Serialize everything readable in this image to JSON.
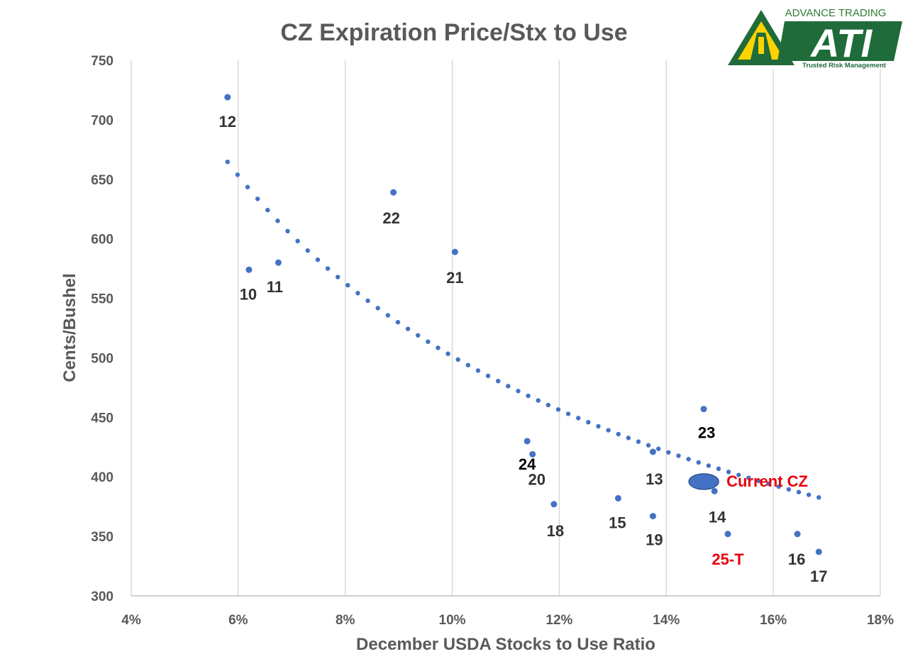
{
  "colors": {
    "marker": "#4472c4",
    "trend": "#4472c4",
    "grid": "#d9d9d9",
    "label": "#333333",
    "label_black": "#000000",
    "highlight": "#e8000b",
    "logo_green": "#1f6b3a",
    "logo_yellow": "#ffd200"
  },
  "logo": {
    "line1": "ADVANCE TRADING",
    "mark": "ATI",
    "tagline": "Trusted Risk Management"
  },
  "chart_data": {
    "type": "scatter",
    "title": "CZ Expiration Price/Stx to Use",
    "xlabel": "December USDA Stocks to Use Ratio",
    "ylabel": "Cents/Bushel",
    "xlim": [
      4,
      18
    ],
    "ylim": [
      300,
      750
    ],
    "x_ticks": [
      4,
      6,
      8,
      10,
      12,
      14,
      16,
      18
    ],
    "x_tick_labels": [
      "4%",
      "6%",
      "8%",
      "10%",
      "12%",
      "14%",
      "16%",
      "18%"
    ],
    "y_ticks": [
      300,
      350,
      400,
      450,
      500,
      550,
      600,
      650,
      700,
      750
    ],
    "y_tick_labels": [
      "300",
      "350",
      "400",
      "450",
      "500",
      "550",
      "600",
      "650",
      "700",
      "750"
    ],
    "grid": "vertical",
    "points": [
      {
        "label": "12",
        "x": 5.8,
        "y": 719
      },
      {
        "label": "10",
        "x": 6.2,
        "y": 574
      },
      {
        "label": "11",
        "x": 6.75,
        "y": 580
      },
      {
        "label": "22",
        "x": 8.9,
        "y": 639
      },
      {
        "label": "21",
        "x": 10.05,
        "y": 589
      },
      {
        "label": "24",
        "x": 11.4,
        "y": 430
      },
      {
        "label": "20",
        "x": 11.5,
        "y": 419
      },
      {
        "label": "18",
        "x": 11.9,
        "y": 377
      },
      {
        "label": "15",
        "x": 13.1,
        "y": 382
      },
      {
        "label": "13",
        "x": 13.75,
        "y": 421
      },
      {
        "label": "19",
        "x": 13.75,
        "y": 367
      },
      {
        "label": "23",
        "x": 14.7,
        "y": 457
      },
      {
        "label": "14",
        "x": 14.9,
        "y": 388
      },
      {
        "label": "25-T",
        "x": 15.15,
        "y": 352
      },
      {
        "label": "16",
        "x": 16.45,
        "y": 352
      },
      {
        "label": "17",
        "x": 16.85,
        "y": 337
      }
    ],
    "current": {
      "label": "Current CZ",
      "x": 14.7,
      "y": 396
    },
    "trendline": {
      "type": "power",
      "a": 1651,
      "b": -0.5176,
      "x_range": [
        5.8,
        16.85
      ]
    }
  }
}
